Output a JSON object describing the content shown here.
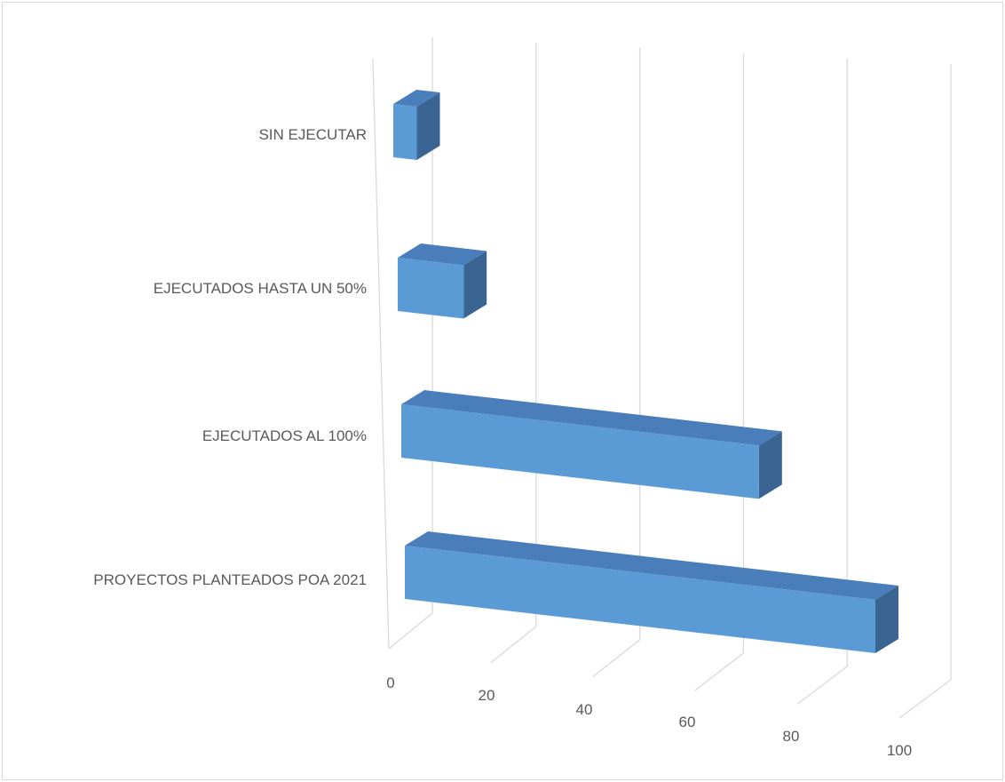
{
  "chart_data": {
    "type": "bar",
    "orientation": "horizontal",
    "style": "3d",
    "title": "",
    "xlabel": "",
    "ylabel": "",
    "categories": [
      "SIN EJECUTAR",
      "EJECUTADOS HASTA UN 50%",
      "EJECUTADOS AL 100%",
      "PROYECTOS PLANTEADOS POA 2021"
    ],
    "values": [
      5,
      14,
      76,
      100
    ],
    "xlim": [
      0,
      100
    ],
    "x_ticks": [
      "0",
      "20",
      "40",
      "60",
      "80",
      "100"
    ],
    "grid": true,
    "legend": "none",
    "colors": {
      "front": "#5b9bd5",
      "top": "#4a7ebb",
      "side": "#3a6592",
      "grid": "#d9d9d9",
      "text": "#595959"
    }
  }
}
